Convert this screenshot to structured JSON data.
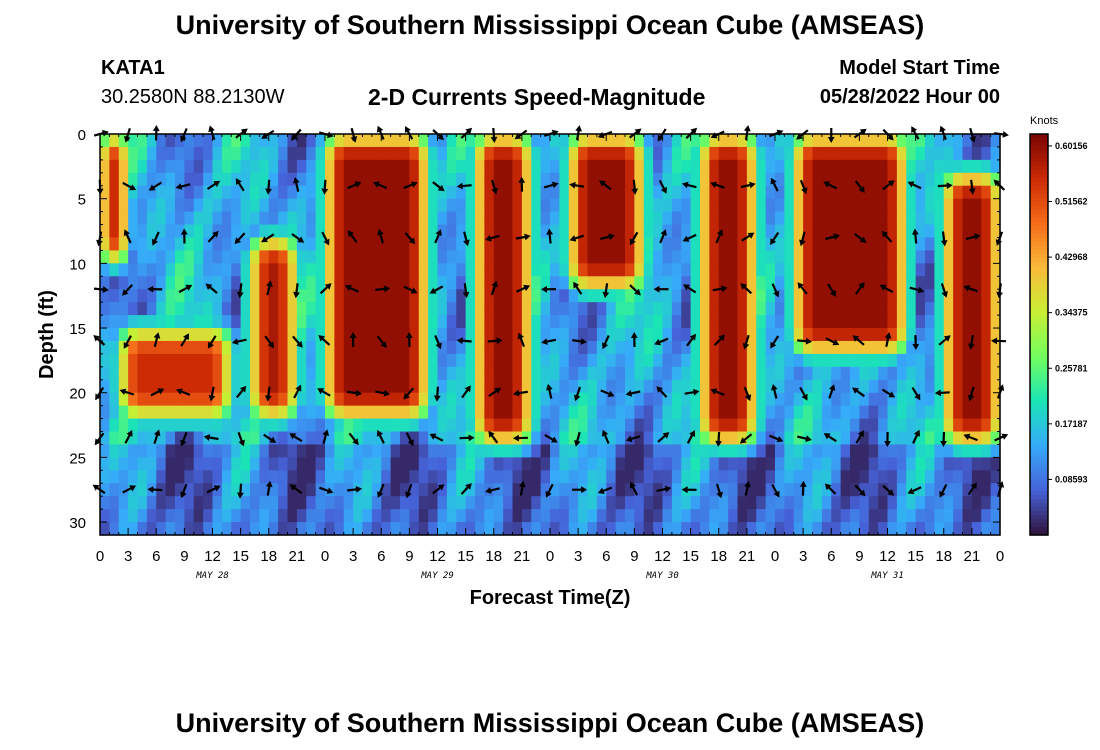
{
  "header": {
    "title": "University of Southern Mississippi Ocean Cube (AMSEAS)",
    "station": "KATA1",
    "coordinates": "30.2580N  88.2130W",
    "subtitle": "2-D Currents Speed-Magnitude",
    "model_start_label": "Model Start Time",
    "model_start_value": "05/28/2022 Hour 00"
  },
  "footer": {
    "title": "University of Southern Mississippi Ocean Cube (AMSEAS)"
  },
  "colors": {
    "colormap": [
      "#30123b",
      "#4662d8",
      "#36aaf9",
      "#1ae4b6",
      "#72fe5e",
      "#c8ef34",
      "#faba39",
      "#f66b19",
      "#cb2a04",
      "#7a0403"
    ]
  },
  "chart_data": {
    "type": "heatmap",
    "title": "2-D Currents Speed-Magnitude",
    "xlabel": "Forecast Time(Z)",
    "ylabel": "Depth (ft)",
    "xlim": [
      0,
      96
    ],
    "ylim": [
      31,
      0
    ],
    "x_tick_labels": [
      "0",
      "3",
      "6",
      "9",
      "12",
      "15",
      "18",
      "21",
      "0",
      "3",
      "6",
      "9",
      "12",
      "15",
      "18",
      "21",
      "0",
      "3",
      "6",
      "9",
      "12",
      "15",
      "18",
      "21",
      "0",
      "3",
      "6",
      "9",
      "12",
      "15",
      "18",
      "21",
      "0"
    ],
    "y_ticks": [
      0,
      5,
      10,
      15,
      20,
      25,
      30
    ],
    "date_labels": [
      {
        "label": "MAY 28",
        "hour": 12
      },
      {
        "label": "MAY 29",
        "hour": 36
      },
      {
        "label": "MAY 30",
        "hour": 60
      },
      {
        "label": "MAY 31",
        "hour": 84
      }
    ],
    "colorbar": {
      "units": "Knots",
      "min": 0.0,
      "max": 0.62,
      "labels": [
        "0.60156",
        "0.51562",
        "0.42968",
        "0.34375",
        "0.25781",
        "0.17187",
        "0.08593"
      ]
    },
    "arrow_depths": [
      0,
      4,
      8,
      12,
      16,
      20,
      23.5,
      27.5
    ],
    "arrow_hours": [
      0,
      3,
      6,
      9,
      12,
      15,
      18,
      21,
      24,
      27,
      30,
      33,
      36,
      39,
      42,
      45,
      48,
      51,
      54,
      57,
      60,
      63,
      66,
      69,
      72,
      75,
      78,
      81,
      84,
      87,
      90,
      93,
      96
    ],
    "high_speed_regions": [
      {
        "hour_start": 0,
        "hour_end": 3,
        "depth_start": 0,
        "depth_end": 10,
        "speed": 0.55
      },
      {
        "hour_start": 2,
        "hour_end": 14,
        "depth_start": 15,
        "depth_end": 22,
        "speed": 0.55
      },
      {
        "hour_start": 16,
        "hour_end": 21,
        "depth_start": 8,
        "depth_end": 22,
        "speed": 0.58
      },
      {
        "hour_start": 24,
        "hour_end": 35,
        "depth_start": 0,
        "depth_end": 22,
        "speed": 0.6
      },
      {
        "hour_start": 40,
        "hour_end": 46,
        "depth_start": 0,
        "depth_end": 24,
        "speed": 0.6
      },
      {
        "hour_start": 50,
        "hour_end": 58,
        "depth_start": 0,
        "depth_end": 12,
        "speed": 0.6
      },
      {
        "hour_start": 64,
        "hour_end": 70,
        "depth_start": 0,
        "depth_end": 24,
        "speed": 0.6
      },
      {
        "hour_start": 74,
        "hour_end": 86,
        "depth_start": 0,
        "depth_end": 17,
        "speed": 0.6
      },
      {
        "hour_start": 90,
        "hour_end": 96,
        "depth_start": 3,
        "depth_end": 24,
        "speed": 0.6
      }
    ]
  }
}
